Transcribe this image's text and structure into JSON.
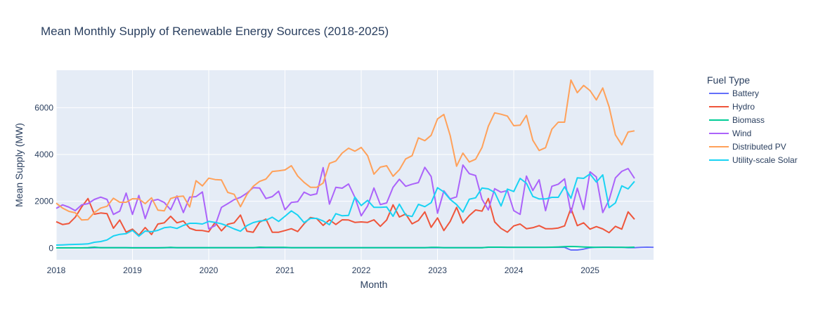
{
  "chart_data": {
    "type": "line",
    "title": "Mean Monthly Supply of Renewable Energy Sources (2018-2025)",
    "xlabel": "Month",
    "ylabel": "Mean Supply (MW)",
    "x_start": "2018-01",
    "x_ticks": [
      "2018",
      "2019",
      "2020",
      "2021",
      "2022",
      "2023",
      "2024",
      "2025"
    ],
    "y_ticks": [
      0,
      2000,
      4000,
      6000
    ],
    "y_tick_labels": [
      "0",
      "2000",
      "4000",
      "6000"
    ],
    "ylim": [
      -500,
      7600
    ],
    "grid": true,
    "legend_title": "Fuel Type",
    "legend_position": "right",
    "series": [
      {
        "name": "Battery",
        "color": "#636efa",
        "values": [
          10,
          10,
          10,
          10,
          10,
          10,
          15,
          20,
          20,
          20,
          20,
          20,
          20,
          20,
          20,
          20,
          20,
          20,
          20,
          20,
          20,
          20,
          20,
          20,
          20,
          20,
          20,
          20,
          20,
          20,
          20,
          20,
          20,
          20,
          20,
          20,
          20,
          20,
          20,
          20,
          20,
          20,
          20,
          20,
          20,
          20,
          20,
          20,
          20,
          20,
          20,
          20,
          20,
          20,
          20,
          20,
          20,
          20,
          20,
          20,
          20,
          20,
          20,
          20,
          20,
          20,
          20,
          20,
          30,
          30,
          30,
          30,
          30,
          30,
          30,
          30,
          30,
          30,
          30,
          30,
          30,
          -80,
          -80,
          -40,
          20,
          30,
          40,
          40,
          30,
          30,
          20,
          20,
          30,
          40,
          30
        ]
      },
      {
        "name": "Hydro",
        "color": "#ef553b",
        "values": [
          1130,
          1010,
          1050,
          1320,
          1760,
          2120,
          1450,
          1500,
          1470,
          850,
          1200,
          680,
          810,
          550,
          880,
          580,
          1030,
          1080,
          1360,
          1080,
          1160,
          850,
          760,
          750,
          700,
          1100,
          740,
          1020,
          1080,
          1410,
          720,
          680,
          1110,
          1240,
          680,
          680,
          750,
          830,
          710,
          1040,
          1310,
          1260,
          970,
          1210,
          1010,
          1210,
          1200,
          1100,
          1120,
          1100,
          1210,
          930,
          1200,
          1850,
          1330,
          1460,
          1040,
          1180,
          1550,
          890,
          1290,
          750,
          1140,
          1740,
          1070,
          1390,
          1630,
          1580,
          2120,
          1120,
          840,
          680,
          950,
          1030,
          830,
          870,
          960,
          830,
          830,
          860,
          950,
          1700,
          960,
          1080,
          810,
          920,
          820,
          660,
          930,
          810,
          1550,
          1230
        ]
      },
      {
        "name": "Biomass",
        "color": "#00cc96",
        "values": [
          10,
          10,
          10,
          10,
          10,
          20,
          40,
          20,
          20,
          20,
          20,
          20,
          10,
          10,
          10,
          10,
          10,
          20,
          30,
          20,
          20,
          20,
          20,
          20,
          20,
          20,
          20,
          20,
          20,
          20,
          20,
          20,
          40,
          30,
          30,
          30,
          30,
          20,
          20,
          20,
          20,
          20,
          20,
          20,
          20,
          20,
          20,
          20,
          20,
          20,
          20,
          20,
          20,
          20,
          20,
          20,
          20,
          20,
          20,
          30,
          30,
          20,
          20,
          20,
          20,
          20,
          20,
          20,
          40,
          40,
          40,
          30,
          30,
          30,
          30,
          30,
          30,
          30,
          40,
          50,
          60,
          70,
          60,
          50,
          40,
          30,
          30,
          30,
          30,
          30,
          30,
          40
        ]
      },
      {
        "name": "Wind",
        "color": "#ab63fa",
        "values": [
          1700,
          1850,
          1750,
          1600,
          1850,
          1900,
          2080,
          2180,
          2080,
          1440,
          1580,
          2350,
          1440,
          2250,
          1260,
          2020,
          2080,
          1950,
          1640,
          2230,
          1520,
          2180,
          2200,
          2400,
          820,
          960,
          1740,
          1900,
          2070,
          2170,
          2350,
          2580,
          2570,
          2120,
          2200,
          2430,
          1640,
          1950,
          1980,
          2390,
          2260,
          2320,
          3440,
          1880,
          2600,
          2560,
          2740,
          2170,
          1380,
          1800,
          2570,
          1860,
          1930,
          2600,
          2940,
          2640,
          2730,
          2800,
          3450,
          3060,
          1490,
          2450,
          2100,
          2190,
          3550,
          3180,
          3100,
          2090,
          1630,
          2540,
          2390,
          2460,
          1600,
          1440,
          3080,
          2460,
          2920,
          1600,
          2640,
          2730,
          2960,
          1510,
          2560,
          1650,
          3260,
          3040,
          1520,
          2060,
          3000,
          3280,
          3400,
          2980
        ]
      },
      {
        "name": "Distributed PV",
        "color": "#ffa15a",
        "values": [
          1920,
          1710,
          1570,
          1510,
          1200,
          1220,
          1520,
          1710,
          1790,
          2130,
          1960,
          1960,
          2110,
          2100,
          1900,
          2150,
          1620,
          1590,
          2120,
          2200,
          2220,
          1760,
          2880,
          2660,
          2990,
          2930,
          2910,
          2380,
          2300,
          1770,
          2290,
          2640,
          2850,
          2950,
          3270,
          3300,
          3340,
          3520,
          3080,
          2810,
          2600,
          2600,
          2780,
          3620,
          3720,
          4060,
          4270,
          4140,
          4300,
          3950,
          3160,
          3460,
          3520,
          3070,
          3350,
          3810,
          3950,
          4710,
          4590,
          4820,
          5520,
          5710,
          4810,
          3500,
          4060,
          3680,
          3800,
          4300,
          5210,
          5780,
          5720,
          5640,
          5230,
          5250,
          5670,
          4610,
          4170,
          4290,
          5080,
          5380,
          5380,
          7180,
          6640,
          6950,
          6730,
          6330,
          6840,
          6040,
          4840,
          4410,
          4960,
          5010
        ]
      },
      {
        "name": "Utility-scale Solar",
        "color": "#19d3f3",
        "values": [
          130,
          140,
          150,
          160,
          170,
          180,
          250,
          280,
          350,
          520,
          590,
          620,
          760,
          510,
          730,
          700,
          760,
          870,
          900,
          840,
          970,
          1060,
          1060,
          1030,
          1140,
          1100,
          1040,
          940,
          820,
          720,
          960,
          1090,
          1160,
          1190,
          1320,
          1140,
          1360,
          1590,
          1410,
          1090,
          1270,
          1270,
          1160,
          1000,
          1470,
          1380,
          1400,
          2180,
          1820,
          2040,
          1740,
          1740,
          1760,
          1360,
          1880,
          1410,
          1350,
          1870,
          1770,
          1940,
          2580,
          2400,
          2080,
          1860,
          1540,
          2090,
          2150,
          2570,
          2530,
          2380,
          1800,
          2520,
          2420,
          2980,
          2770,
          2210,
          2100,
          2100,
          2170,
          2170,
          2620,
          2130,
          3000,
          2980,
          3170,
          2820,
          3130,
          1730,
          1930,
          2660,
          2530,
          2850
        ]
      }
    ]
  }
}
